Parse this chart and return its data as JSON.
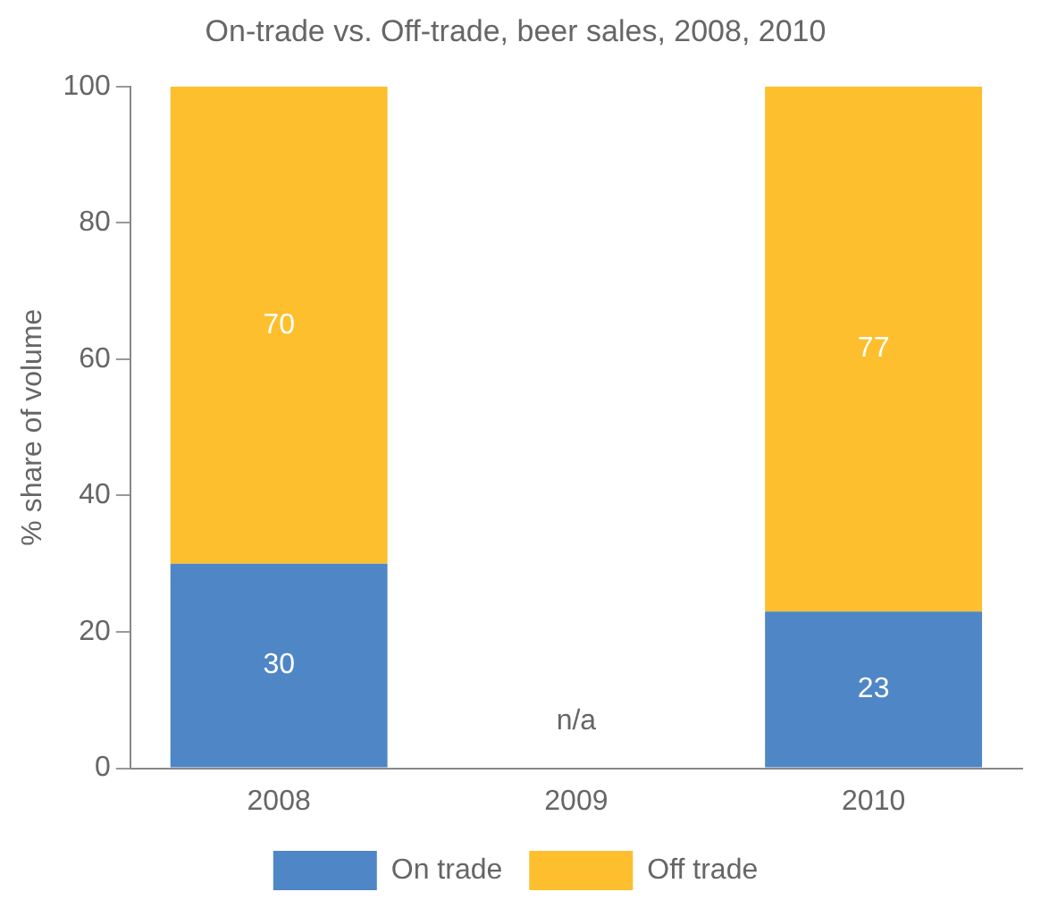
{
  "chart_data": {
    "type": "bar",
    "title": "On-trade vs. Off-trade, beer sales, 2008, 2010",
    "ylabel": "% share of volume",
    "categories": [
      "2008",
      "2009",
      "2010"
    ],
    "stacked": true,
    "series": [
      {
        "name": "On trade",
        "color": "#4f86c6",
        "values": [
          30,
          null,
          23
        ]
      },
      {
        "name": "Off trade",
        "color": "#fdbf2d",
        "values": [
          70,
          null,
          77
        ]
      }
    ],
    "ylim": [
      0,
      100
    ],
    "yticks": [
      0,
      20,
      40,
      60,
      80,
      100
    ],
    "grid": false,
    "legend": "bottom",
    "data_labels": true,
    "annotations": [
      "n/a"
    ]
  }
}
